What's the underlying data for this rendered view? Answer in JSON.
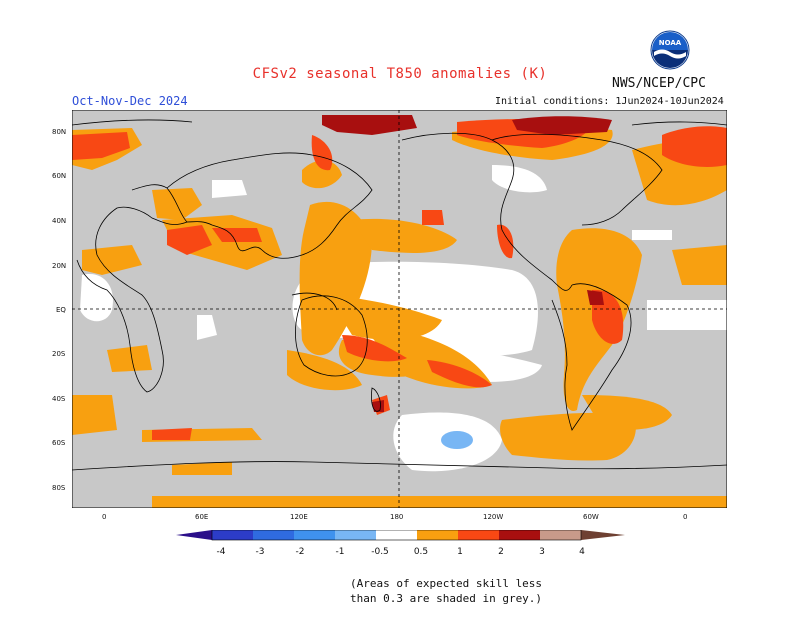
{
  "header": {
    "title": "CFSv2 seasonal T850 anomalies (K)",
    "org": "NWS/NCEP/CPC",
    "season": "Oct-Nov-Dec 2024",
    "initial_conditions": "Initial conditions: 1Jun2024-10Jun2024",
    "logo_text": "NOAA"
  },
  "map": {
    "lat_labels": [
      "80N",
      "60N",
      "40N",
      "20N",
      "EQ",
      "20S",
      "40S",
      "60S",
      "80S"
    ],
    "lon_labels": [
      "0",
      "60E",
      "120E",
      "180",
      "120W",
      "60W",
      "0"
    ]
  },
  "legend": {
    "ticks": [
      "-4",
      "-3",
      "-2",
      "-1",
      "-0.5",
      "0.5",
      "1",
      "2",
      "3",
      "4"
    ],
    "colors": {
      "lt_-4": "#2b0f8a",
      "-4_-3": "#2c3cc8",
      "-3_-2": "#2f6be0",
      "-2_-1": "#3f92ee",
      "-1_-0.5": "#78b6f4",
      "-0.5_0.5": "#ffffff",
      "0.5_1": "#f8a010",
      "1_2": "#f84814",
      "2_3": "#a80f0f",
      "3_4": "#c89a8a",
      "gt_4": "#6e4032"
    },
    "grey_color": "#c8c8c8",
    "note_line1": "(Areas of expected skill less",
    "note_line2": "than 0.3 are shaded in grey.)"
  }
}
